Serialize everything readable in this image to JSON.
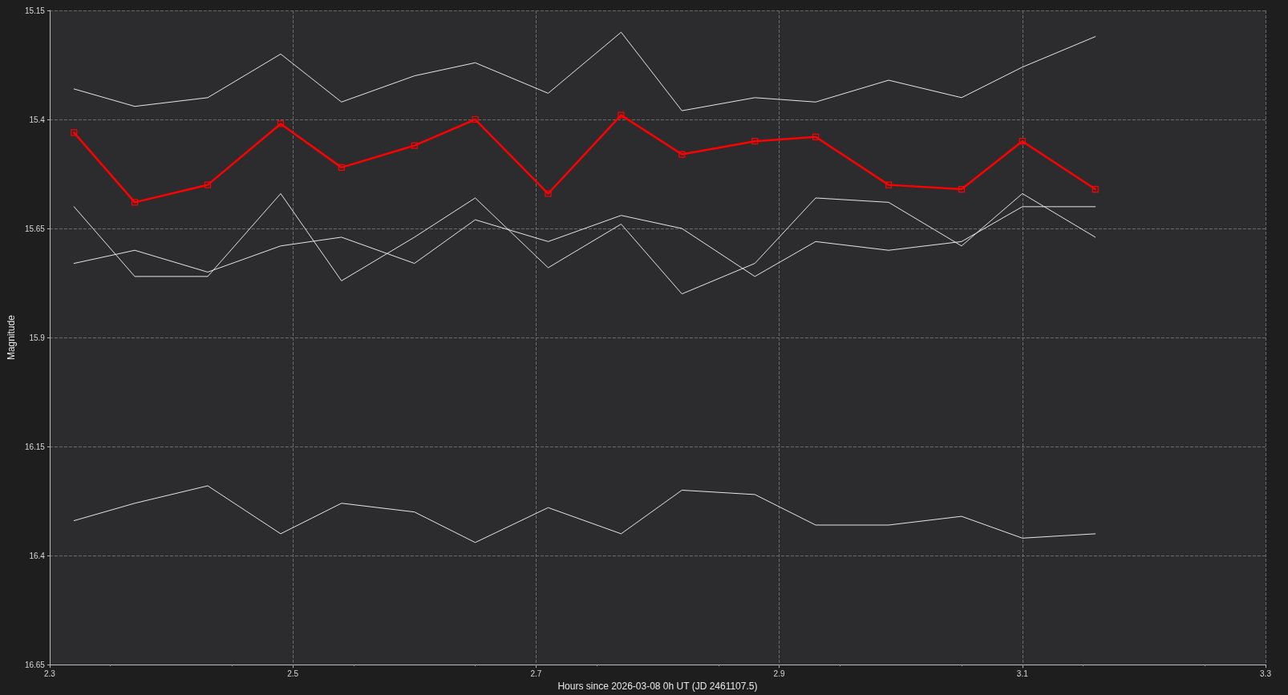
{
  "chart_data": {
    "type": "line",
    "xlabel": "Hours since 2026-03-08 0h UT (JD 2461107.5)",
    "ylabel": "Magnitude",
    "x": [
      2.32,
      2.37,
      2.43,
      2.49,
      2.54,
      2.6,
      2.65,
      2.71,
      2.77,
      2.82,
      2.88,
      2.93,
      2.99,
      3.05,
      3.1,
      3.16
    ],
    "series": [
      {
        "color": "#e6e6e6",
        "values": [
          15.33,
          15.37,
          15.35,
          15.25,
          15.36,
          15.3,
          15.27,
          15.34,
          15.2,
          15.38,
          15.35,
          15.36,
          15.31,
          15.35,
          15.28,
          15.21
        ]
      },
      {
        "color": "#ff0000",
        "marker": "square",
        "values": [
          15.43,
          15.59,
          15.55,
          15.41,
          15.51,
          15.46,
          15.4,
          15.57,
          15.39,
          15.48,
          15.45,
          15.44,
          15.55,
          15.56,
          15.45,
          15.56
        ]
      },
      {
        "color": "#e6e6e6",
        "values": [
          15.6,
          15.76,
          15.76,
          15.57,
          15.77,
          15.67,
          15.58,
          15.74,
          15.64,
          15.8,
          15.73,
          15.58,
          15.59,
          15.69,
          15.57,
          15.67
        ]
      },
      {
        "color": "#e6e6e6",
        "values": [
          15.73,
          15.7,
          15.75,
          15.69,
          15.67,
          15.73,
          15.63,
          15.68,
          15.62,
          15.65,
          15.76,
          15.68,
          15.7,
          15.68,
          15.6,
          15.6
        ]
      },
      {
        "color": "#e6e6e6",
        "values": [
          16.32,
          16.28,
          16.24,
          16.35,
          16.28,
          16.3,
          16.37,
          16.29,
          16.35,
          16.25,
          16.26,
          16.33,
          16.33,
          16.31,
          16.36,
          16.35
        ]
      }
    ],
    "xlim": [
      2.3,
      3.3
    ],
    "xticks": [
      2.3,
      2.5,
      2.7,
      2.9,
      3.1,
      3.3
    ],
    "ylim": [
      16.65,
      15.15
    ],
    "yticks": [
      15.15,
      15.4,
      15.65,
      15.9,
      16.15,
      16.4,
      16.65
    ],
    "grid": true,
    "marker": "none",
    "line_style": "solid"
  }
}
